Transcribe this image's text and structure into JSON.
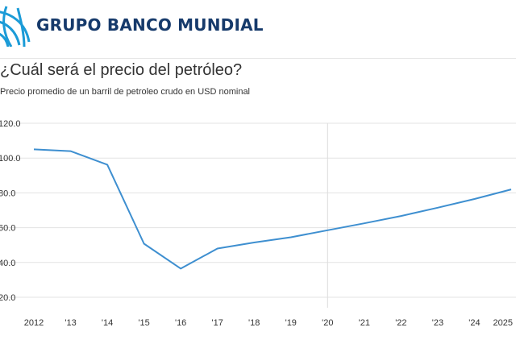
{
  "header": {
    "org_name": "GRUPO BANCO MUNDIAL",
    "logo_icon": "globe-icon",
    "brand_color": "#163a6b",
    "accent_color": "#1b9bd7"
  },
  "chart_data": {
    "type": "line",
    "title": "¿Cuál será el precio del petróleo?",
    "subtitle": "Precio promedio de un barril de petroleo crudo en USD nominal",
    "xlabel": "",
    "ylabel": "",
    "x_tick_labels": [
      "2012",
      "'13",
      "'14",
      "'15",
      "'16",
      "'17",
      "'18",
      "'19",
      "'20",
      "'21",
      "'22",
      "'23",
      "'24",
      "2025"
    ],
    "y_tick_labels": [
      "20.0",
      "40.0",
      "60.0",
      "80.0",
      "100.0",
      "120.0"
    ],
    "y_ticks": [
      20,
      40,
      60,
      80,
      100,
      120
    ],
    "ylim": [
      20,
      120
    ],
    "xlim": [
      2012,
      2025
    ],
    "vertical_marker_x": 2020,
    "grid": "horizontal",
    "line_color": "#3e8fd0",
    "series": [
      {
        "x": [
          2012,
          2013,
          2014,
          2015,
          2016,
          2017,
          2018,
          2019,
          2020,
          2021,
          2022,
          2023,
          2024,
          2025
        ],
        "values": [
          105,
          104,
          96.2,
          50.8,
          36.5,
          48,
          51.5,
          54.5,
          58.5,
          62.5,
          66.7,
          71.5,
          76.5,
          82
        ]
      }
    ]
  }
}
